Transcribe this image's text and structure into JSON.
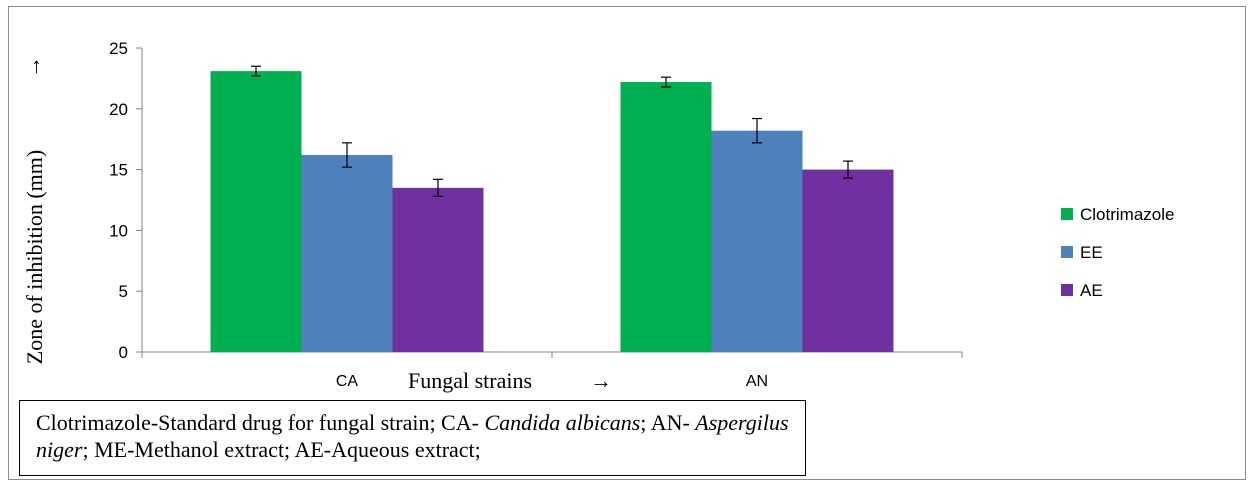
{
  "chart_data": {
    "type": "bar",
    "categories": [
      "CA",
      "AN"
    ],
    "series": [
      {
        "name": "Clotrimazole",
        "values": [
          23.1,
          22.2
        ],
        "errors": [
          0.4,
          0.4
        ],
        "color": "#00b050"
      },
      {
        "name": "EE",
        "values": [
          16.2,
          18.2
        ],
        "errors": [
          1.0,
          1.0
        ],
        "color": "#4f81bd"
      },
      {
        "name": "AE",
        "values": [
          13.5,
          15.0
        ],
        "errors": [
          0.7,
          0.7
        ],
        "color": "#7030a0"
      }
    ],
    "xlabel": "Fungal strains",
    "xlabel_arrow": "→",
    "ylabel": "Zone of inhibition (mm)",
    "ylabel_arrow": "→",
    "ylim": [
      0,
      25
    ],
    "yticks": [
      "0",
      "5",
      "10",
      "15",
      "20",
      "25"
    ],
    "grid": false,
    "legend_position": "right"
  },
  "note": {
    "part1": "Clotrimazole-Standard drug for fungal strain; CA- ",
    "ca_italic": "Candida albicans",
    "part2": "; AN- ",
    "an_italic_line1": "Aspergilus",
    "an_italic_line2": "niger",
    "part3": "; ME-Methanol extract; AE-Aqueous extract;"
  }
}
